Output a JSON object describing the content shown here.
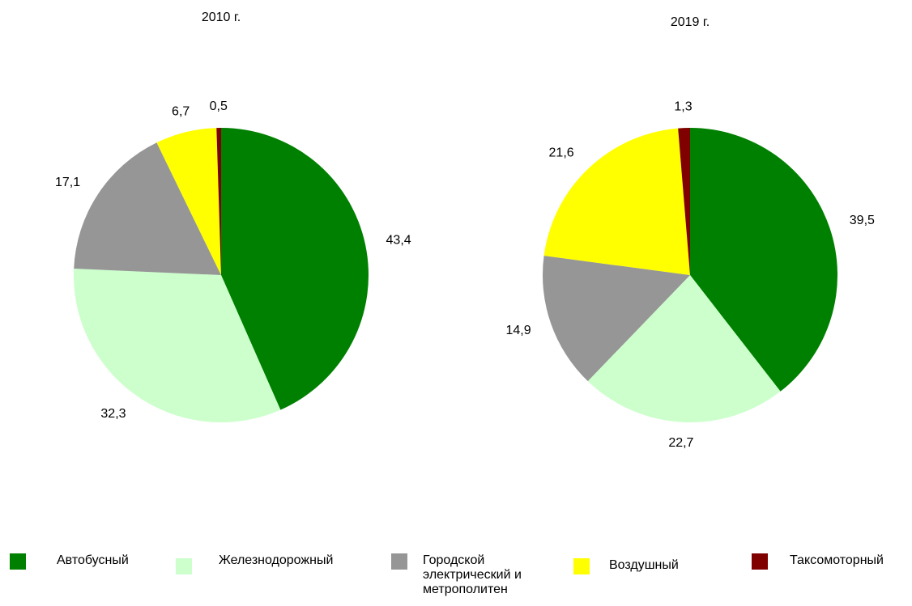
{
  "chart_data": [
    {
      "type": "pie",
      "title": "2010 г.",
      "values": [
        43.4,
        32.3,
        17.1,
        6.7,
        0.5
      ],
      "value_labels": [
        "43,4",
        "32,3",
        "17,1",
        "6,7",
        "0,5"
      ]
    },
    {
      "type": "pie",
      "title": "2019 г.",
      "values": [
        39.5,
        22.7,
        14.9,
        21.6,
        1.3
      ],
      "value_labels": [
        "39,5",
        "22,7",
        "14,9",
        "21,6",
        "1,3"
      ]
    }
  ],
  "legend": {
    "position": "bottom",
    "names": [
      "Автобусный",
      "Железнодорожный",
      "Городской электрический и метрополитен",
      "Воздушный",
      "Таксомоторный"
    ],
    "colors": [
      "#008000",
      "#ccffcc",
      "#969696",
      "#ffff00",
      "#800000"
    ]
  }
}
